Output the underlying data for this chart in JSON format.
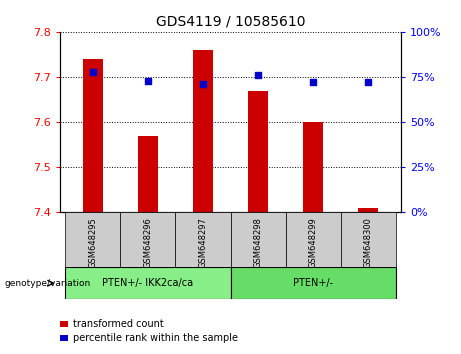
{
  "title": "GDS4119 / 10585610",
  "samples": [
    "GSM648295",
    "GSM648296",
    "GSM648297",
    "GSM648298",
    "GSM648299",
    "GSM648300"
  ],
  "transformed_counts": [
    7.74,
    7.57,
    7.76,
    7.67,
    7.6,
    7.41
  ],
  "percentile_ranks": [
    78,
    73,
    71,
    76,
    72,
    72
  ],
  "ylim_left": [
    7.4,
    7.8
  ],
  "ylim_right": [
    0,
    100
  ],
  "yticks_left": [
    7.4,
    7.5,
    7.6,
    7.7,
    7.8
  ],
  "yticks_right": [
    0,
    25,
    50,
    75,
    100
  ],
  "bar_color": "#cc0000",
  "dot_color": "#0000cc",
  "group1_label": "PTEN+/- IKK2ca/ca",
  "group2_label": "PTEN+/-",
  "group1_color": "#88ee88",
  "group2_color": "#66dd66",
  "group1_indices": [
    0,
    1,
    2
  ],
  "group2_indices": [
    3,
    4,
    5
  ],
  "genotype_label": "genotype/variation",
  "legend1": "transformed count",
  "legend2": "percentile rank within the sample",
  "bar_bottom": 7.4,
  "x_positions": [
    0,
    1,
    2,
    3,
    4,
    5
  ],
  "sample_bg_color": "#cccccc",
  "bar_width": 0.35
}
